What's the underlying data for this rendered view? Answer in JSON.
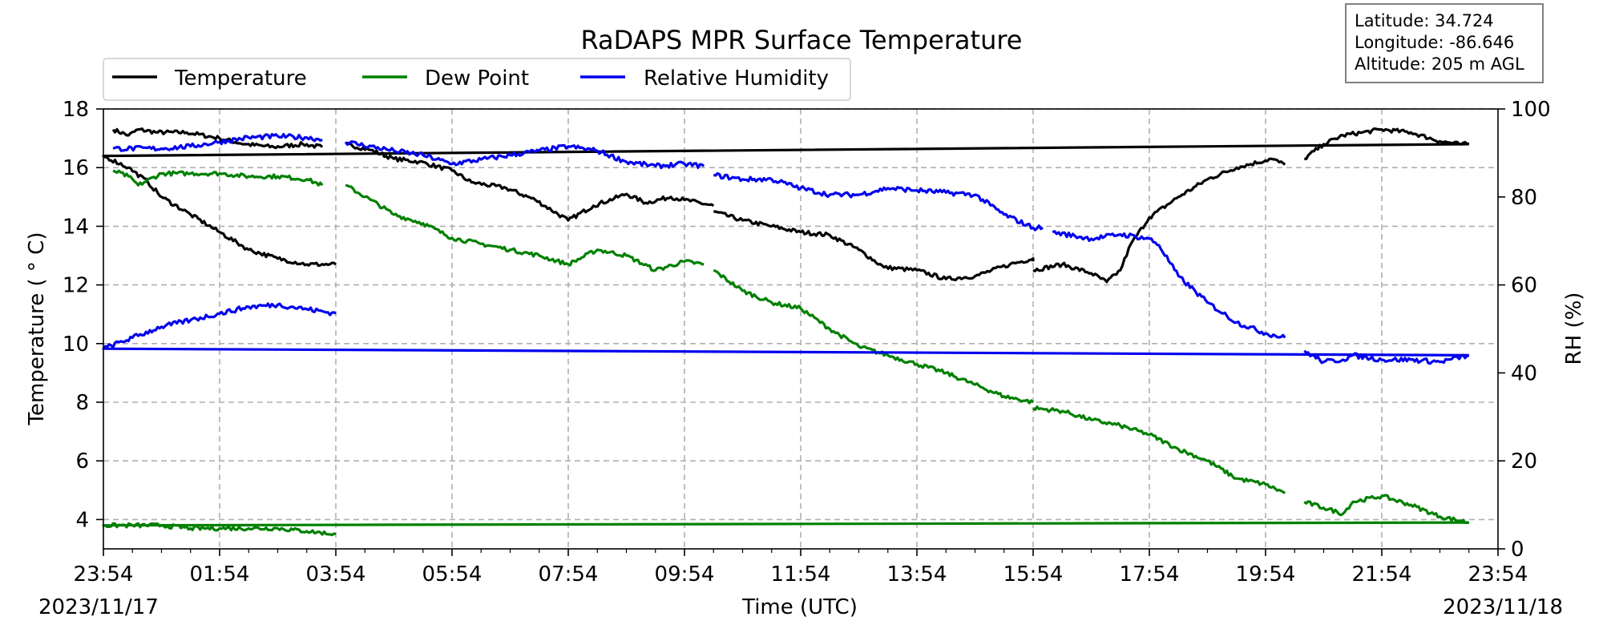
{
  "chart_data": {
    "type": "line",
    "title": "RaDAPS MPR Surface Temperature",
    "xlabel": "Time (UTC)",
    "ylabel": "Temperature ( $^\\circ$C)",
    "ylabel_display": "Temperature ( ° C)",
    "y2label": "RH (%)",
    "date_start": "2023/11/17",
    "date_end": "2023/11/18",
    "x_ticks": [
      "23:54",
      "01:54",
      "03:54",
      "05:54",
      "07:54",
      "09:54",
      "11:54",
      "13:54",
      "15:54",
      "17:54",
      "19:54",
      "21:54",
      "23:54"
    ],
    "xlim": [
      "2023/11/17 23:54",
      "2023/11/18 23:54"
    ],
    "ylim": [
      3,
      18
    ],
    "y_ticks": [
      4,
      6,
      8,
      10,
      12,
      14,
      16,
      18
    ],
    "y2lim": [
      0,
      100
    ],
    "y2_ticks": [
      0,
      20,
      40,
      60,
      80,
      100
    ],
    "grid": true,
    "legend_position": "top-left",
    "info_box": [
      "Latitude: 34.724",
      "Longitude: -86.646",
      "Altitude: 205 m AGL"
    ],
    "series": [
      {
        "name": "Temperature",
        "color": "#000000",
        "axis": "left",
        "segments": [
          [
            [
              "00:04",
              17.3
            ],
            [
              "00:20",
              17.1
            ],
            [
              "00:30",
              17.3
            ],
            [
              "00:50",
              17.2
            ],
            [
              "01:20",
              17.2
            ],
            [
              "01:54",
              17.0
            ],
            [
              "02:20",
              16.8
            ],
            [
              "02:50",
              16.7
            ],
            [
              "03:20",
              16.8
            ],
            [
              "03:40",
              16.7
            ]
          ],
          [
            [
              "04:04",
              16.8
            ],
            [
              "04:30",
              16.6
            ],
            [
              "04:54",
              16.3
            ],
            [
              "05:20",
              16.2
            ],
            [
              "05:54",
              15.9
            ],
            [
              "06:14",
              15.5
            ],
            [
              "06:50",
              15.3
            ],
            [
              "07:20",
              14.9
            ],
            [
              "07:54",
              14.2
            ],
            [
              "08:20",
              14.7
            ],
            [
              "08:54",
              15.1
            ],
            [
              "09:14",
              14.8
            ],
            [
              "09:40",
              15.0
            ],
            [
              "09:54",
              14.9
            ],
            [
              "10:24",
              14.7
            ]
          ],
          [
            [
              "10:24",
              14.5
            ],
            [
              "10:54",
              14.2
            ],
            [
              "11:24",
              14.0
            ],
            [
              "11:54",
              13.8
            ],
            [
              "12:24",
              13.7
            ],
            [
              "12:54",
              13.2
            ],
            [
              "13:20",
              12.6
            ],
            [
              "13:54",
              12.5
            ],
            [
              "14:24",
              12.2
            ],
            [
              "14:54",
              12.3
            ],
            [
              "15:30",
              12.7
            ],
            [
              "15:54",
              12.9
            ],
            [
              "15:54",
              12.8
            ]
          ],
          [
            [
              "15:54",
              12.5
            ],
            [
              "16:24",
              12.7
            ],
            [
              "16:54",
              12.4
            ],
            [
              "17:10",
              12.1
            ],
            [
              "17:24",
              12.5
            ],
            [
              "17:35",
              13.4
            ],
            [
              "17:54",
              14.3
            ],
            [
              "18:24",
              15.0
            ],
            [
              "18:54",
              15.6
            ],
            [
              "19:24",
              16.0
            ],
            [
              "20:00",
              16.3
            ],
            [
              "20:14",
              16.1
            ]
          ],
          [
            [
              "20:34",
              16.3
            ],
            [
              "20:54",
              16.8
            ],
            [
              "21:14",
              17.1
            ],
            [
              "21:34",
              17.2
            ],
            [
              "21:54",
              17.3
            ],
            [
              "22:24",
              17.2
            ],
            [
              "22:54",
              16.9
            ],
            [
              "23:14",
              16.8
            ],
            [
              "23:24",
              16.8
            ]
          ],
          [
            [
              "23:24",
              16.8
            ],
            [
              "23:54",
              16.4
            ],
            [
              "00:20",
              16.0
            ],
            [
              "00:40",
              15.5
            ],
            [
              "00:54",
              15.0
            ],
            [
              "01:24",
              14.4
            ],
            [
              "01:54",
              13.8
            ],
            [
              "02:24",
              13.2
            ],
            [
              "02:54",
              12.9
            ],
            [
              "03:24",
              12.7
            ],
            [
              "03:54",
              12.7
            ]
          ]
        ]
      },
      {
        "name": "Dew Point",
        "color": "#008000",
        "axis": "left",
        "segments": [
          [
            [
              "00:04",
              15.9
            ],
            [
              "00:20",
              15.7
            ],
            [
              "00:30",
              15.4
            ],
            [
              "00:54",
              15.8
            ],
            [
              "01:24",
              15.8
            ],
            [
              "01:54",
              15.8
            ],
            [
              "02:24",
              15.7
            ],
            [
              "02:54",
              15.7
            ],
            [
              "03:24",
              15.6
            ],
            [
              "03:40",
              15.4
            ]
          ],
          [
            [
              "04:04",
              15.4
            ],
            [
              "04:30",
              14.9
            ],
            [
              "04:54",
              14.4
            ],
            [
              "05:24",
              14.1
            ],
            [
              "05:54",
              13.6
            ],
            [
              "06:24",
              13.4
            ],
            [
              "06:54",
              13.2
            ],
            [
              "07:24",
              13.0
            ],
            [
              "07:54",
              12.7
            ],
            [
              "08:24",
              13.2
            ],
            [
              "08:54",
              13.0
            ],
            [
              "09:24",
              12.5
            ],
            [
              "09:54",
              12.8
            ],
            [
              "10:14",
              12.7
            ]
          ],
          [
            [
              "10:24",
              12.5
            ],
            [
              "10:54",
              11.8
            ],
            [
              "11:24",
              11.4
            ],
            [
              "11:54",
              11.2
            ],
            [
              "12:24",
              10.5
            ],
            [
              "12:54",
              9.9
            ],
            [
              "13:24",
              9.6
            ],
            [
              "13:54",
              9.3
            ],
            [
              "14:24",
              9.0
            ],
            [
              "14:54",
              8.6
            ],
            [
              "15:24",
              8.2
            ],
            [
              "15:54",
              8.0
            ]
          ],
          [
            [
              "15:54",
              7.8
            ],
            [
              "16:24",
              7.7
            ],
            [
              "16:54",
              7.4
            ],
            [
              "17:24",
              7.2
            ],
            [
              "17:54",
              6.9
            ],
            [
              "18:24",
              6.4
            ],
            [
              "18:54",
              6.0
            ],
            [
              "19:24",
              5.4
            ],
            [
              "19:54",
              5.2
            ],
            [
              "20:14",
              4.9
            ]
          ],
          [
            [
              "20:34",
              4.6
            ],
            [
              "20:54",
              4.4
            ],
            [
              "21:14",
              4.2
            ],
            [
              "21:24",
              4.6
            ],
            [
              "21:54",
              4.8
            ],
            [
              "22:24",
              4.5
            ],
            [
              "22:54",
              4.1
            ],
            [
              "23:24",
              3.9
            ]
          ],
          [
            [
              "23:24",
              3.9
            ],
            [
              "23:54",
              3.8
            ],
            [
              "00:24",
              3.8
            ],
            [
              "00:54",
              3.8
            ],
            [
              "01:24",
              3.7
            ],
            [
              "01:54",
              3.7
            ],
            [
              "02:24",
              3.7
            ],
            [
              "02:54",
              3.7
            ],
            [
              "03:24",
              3.6
            ],
            [
              "03:54",
              3.5
            ]
          ]
        ]
      },
      {
        "name": "Relative Humidity",
        "color": "#0000ee",
        "axis": "right",
        "segments": [
          [
            [
              "00:04",
              91.0
            ],
            [
              "00:54",
              91.0
            ],
            [
              "01:24",
              91.5
            ],
            [
              "01:54",
              92.5
            ],
            [
              "02:24",
              93.5
            ],
            [
              "02:54",
              93.8
            ],
            [
              "03:24",
              93.5
            ],
            [
              "03:40",
              93.0
            ]
          ],
          [
            [
              "04:04",
              92.5
            ],
            [
              "04:54",
              90.5
            ],
            [
              "05:24",
              89.5
            ],
            [
              "05:54",
              87.5
            ],
            [
              "06:24",
              88.5
            ],
            [
              "06:54",
              89.5
            ],
            [
              "07:24",
              90.5
            ],
            [
              "07:54",
              91.5
            ],
            [
              "08:24",
              90.5
            ],
            [
              "08:54",
              88.0
            ],
            [
              "09:24",
              87.0
            ],
            [
              "09:54",
              87.5
            ],
            [
              "10:14",
              87.0
            ]
          ],
          [
            [
              "10:24",
              85.0
            ],
            [
              "10:54",
              84.0
            ],
            [
              "11:24",
              84.0
            ],
            [
              "11:54",
              82.0
            ],
            [
              "12:24",
              80.5
            ],
            [
              "12:54",
              80.5
            ],
            [
              "13:24",
              82.0
            ],
            [
              "13:54",
              81.5
            ],
            [
              "14:24",
              81.0
            ],
            [
              "14:54",
              80.5
            ],
            [
              "15:24",
              76.0
            ],
            [
              "15:54",
              73.0
            ],
            [
              "16:04",
              73.0
            ]
          ],
          [
            [
              "16:14",
              72.0
            ],
            [
              "16:54",
              70.5
            ],
            [
              "17:24",
              71.5
            ],
            [
              "17:54",
              70.5
            ],
            [
              "18:04",
              69.0
            ],
            [
              "18:24",
              62.0
            ],
            [
              "18:54",
              56.0
            ],
            [
              "19:24",
              51.5
            ],
            [
              "19:54",
              49.0
            ],
            [
              "20:14",
              48.0
            ]
          ],
          [
            [
              "20:34",
              45.0
            ],
            [
              "20:54",
              42.5
            ],
            [
              "21:14",
              43.0
            ],
            [
              "21:24",
              44.0
            ],
            [
              "21:54",
              43.0
            ],
            [
              "22:24",
              43.0
            ],
            [
              "22:54",
              42.5
            ],
            [
              "23:24",
              44.0
            ]
          ],
          [
            [
              "23:24",
              44.0
            ],
            [
              "23:54",
              45.5
            ],
            [
              "00:24",
              48.0
            ],
            [
              "00:54",
              50.5
            ],
            [
              "01:24",
              52.0
            ],
            [
              "01:54",
              53.5
            ],
            [
              "02:24",
              55.0
            ],
            [
              "02:54",
              55.5
            ],
            [
              "03:24",
              54.5
            ],
            [
              "03:54",
              53.5
            ]
          ]
        ]
      }
    ]
  }
}
